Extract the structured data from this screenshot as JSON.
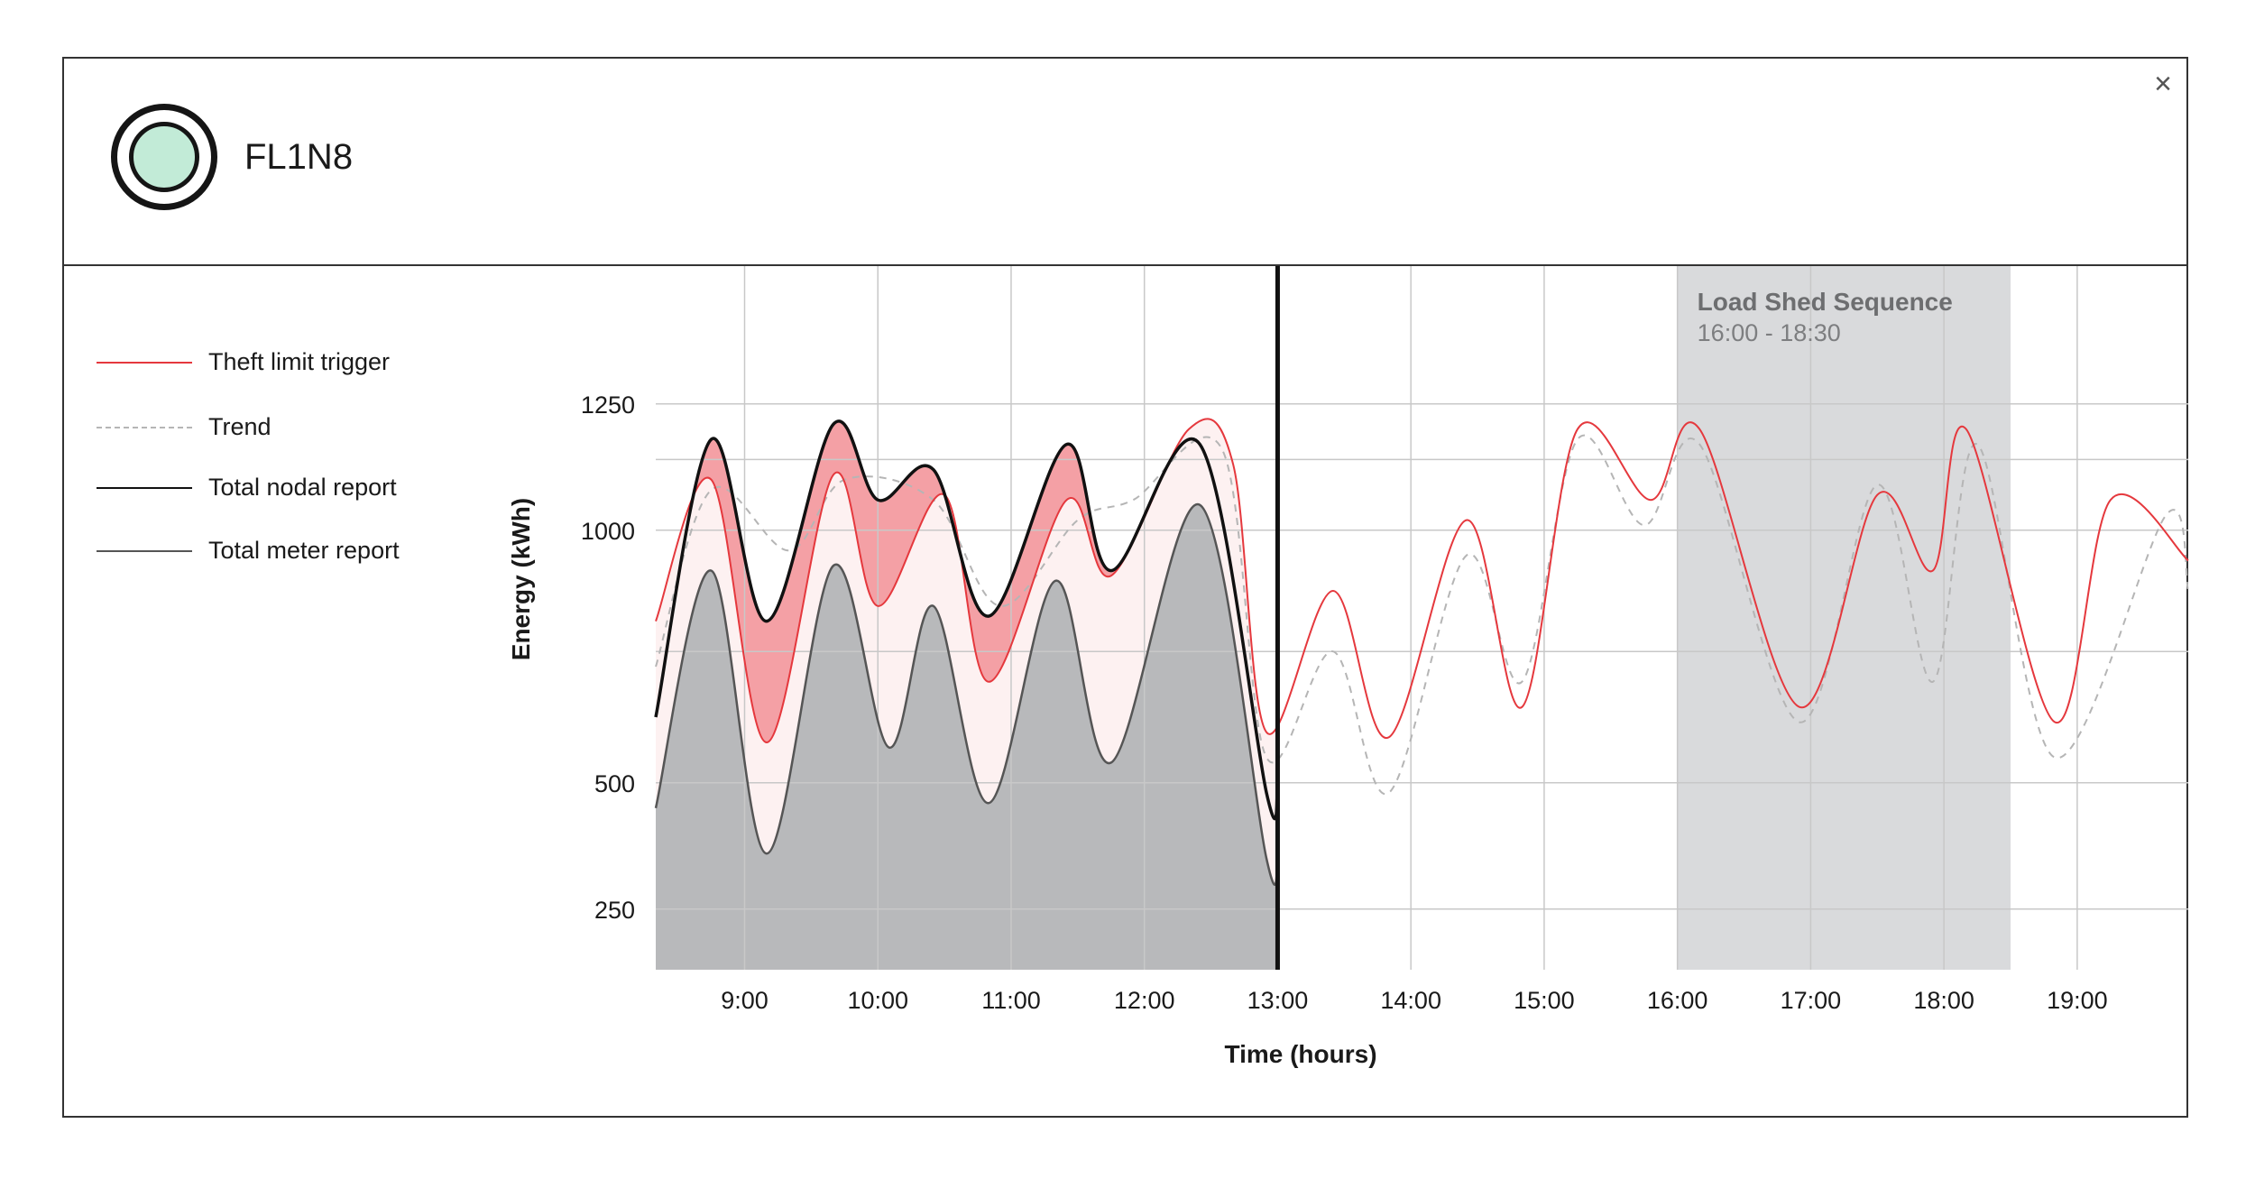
{
  "panel": {
    "node_id": "FL1N8",
    "close_glyph": "×",
    "status_color": "#c2ebd7",
    "status_icon": "status-ring-icon"
  },
  "legend": [
    {
      "label": "Theft limit trigger",
      "style": "solid",
      "color": "#e5383d"
    },
    {
      "label": "Trend",
      "style": "dashed",
      "color": "#b5b5b5"
    },
    {
      "label": "Total nodal report",
      "style": "solid",
      "color": "#111111"
    },
    {
      "label": "Total meter report",
      "style": "solid",
      "color": "#555555"
    }
  ],
  "chart_data": {
    "type": "line",
    "xlabel": "Time (hours)",
    "ylabel": "Energy (kWh)",
    "x_ticks": [
      "9:00",
      "10:00",
      "11:00",
      "12:00",
      "13:00",
      "14:00",
      "15:00",
      "16:00",
      "17:00",
      "18:00",
      "19:00"
    ],
    "y_ticks": [
      "250",
      "500",
      "1000",
      "1250"
    ],
    "xlim": [
      "8:20",
      "19:50"
    ],
    "current_time": "13:00",
    "grid": true,
    "annotation": {
      "title": "Load Shed Sequence",
      "subtitle": "16:00 - 18:30",
      "start": "16:00",
      "end": "18:30",
      "color": "#d9dadc"
    },
    "colors": {
      "theft": "#e5383d",
      "theft_fill": "#f4a0a5",
      "band_fill": "#fdf1f1",
      "trend": "#b5b5b5",
      "nodal": "#111111",
      "meter": "#555555",
      "meter_fill": "#b8b9bb"
    },
    "series": [
      {
        "name": "Theft limit trigger",
        "x": [
          "8:20",
          "8:45",
          "9:10",
          "9:40",
          "10:00",
          "10:30",
          "10:50",
          "11:25",
          "11:45",
          "12:20",
          "12:40",
          "12:55",
          "13:25",
          "13:50",
          "14:25",
          "14:50",
          "15:15",
          "15:48",
          "16:10",
          "16:55",
          "17:30",
          "17:55",
          "18:10",
          "18:50",
          "19:15",
          "19:50"
        ],
        "y": [
          820,
          1100,
          580,
          1110,
          850,
          1070,
          700,
          1060,
          910,
          1200,
          1130,
          600,
          880,
          590,
          1020,
          650,
          1200,
          1060,
          1200,
          650,
          1070,
          920,
          1200,
          620,
          1060,
          940
        ]
      },
      {
        "name": "Trend",
        "x": [
          "8:20",
          "8:45",
          "9:20",
          "9:45",
          "10:25",
          "10:55",
          "11:30",
          "11:55",
          "12:35",
          "12:55",
          "13:25",
          "13:50",
          "14:25",
          "14:50",
          "15:15",
          "15:45",
          "16:10",
          "16:55",
          "17:30",
          "17:55",
          "18:15",
          "18:50",
          "19:40",
          "19:50"
        ],
        "y": [
          730,
          1080,
          960,
          1100,
          1060,
          850,
          1020,
          1060,
          1160,
          550,
          760,
          480,
          950,
          700,
          1180,
          1010,
          1170,
          620,
          1090,
          700,
          1170,
          550,
          1030,
          880
        ]
      },
      {
        "name": "Total nodal report",
        "x": [
          "8:20",
          "8:45",
          "9:10",
          "9:40",
          "10:00",
          "10:25",
          "10:50",
          "11:25",
          "11:45",
          "12:25",
          "12:55",
          "13:00"
        ],
        "y": [
          630,
          1180,
          820,
          1210,
          1060,
          1120,
          830,
          1170,
          920,
          1170,
          480,
          480
        ]
      },
      {
        "name": "Total meter report",
        "x": [
          "8:20",
          "8:45",
          "9:10",
          "9:40",
          "10:05",
          "10:25",
          "10:50",
          "11:20",
          "11:45",
          "12:25",
          "12:55",
          "13:00"
        ],
        "y": [
          450,
          920,
          360,
          930,
          570,
          850,
          460,
          900,
          540,
          1050,
          350,
          350
        ]
      }
    ]
  }
}
